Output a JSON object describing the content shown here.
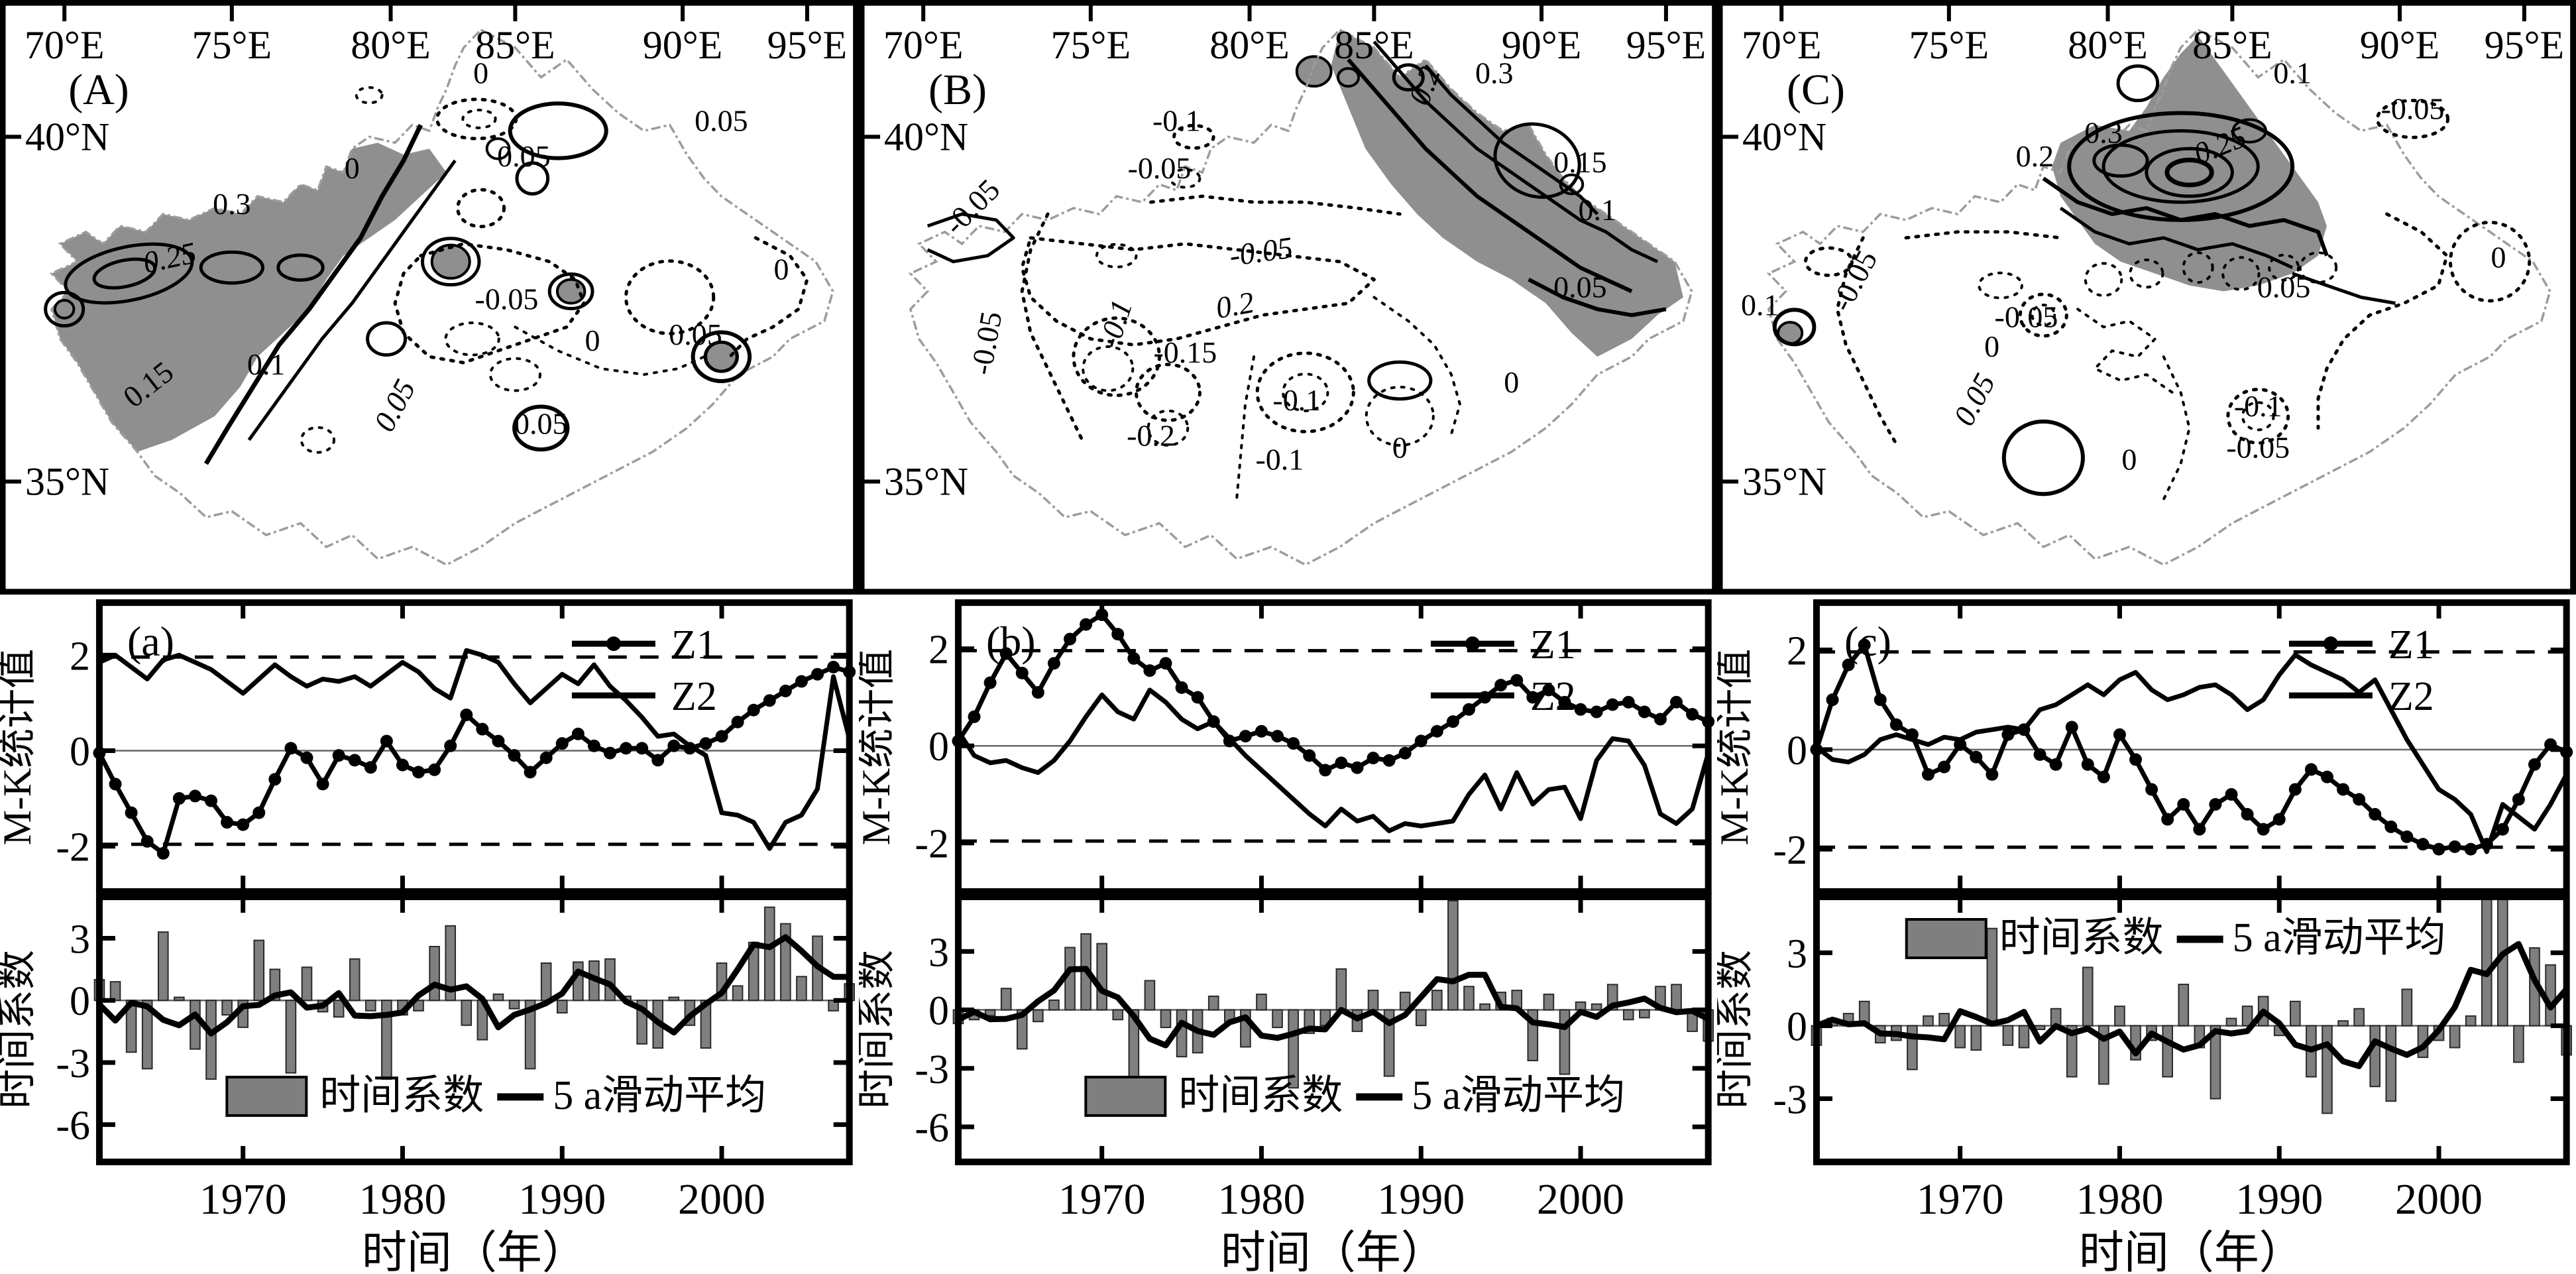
{
  "figure": {
    "background": "#ffffff",
    "ink": "#000000",
    "boundary_color": "#9c9c9c",
    "shade_color": "#8f8f8f",
    "bar_color": "#7f7f7f"
  },
  "chart_data": {
    "maps": [
      {
        "panel_label": "(A)",
        "type": "contour-map",
        "lon_ticks": [
          "70°E",
          "75°E",
          "80°E",
          "85°E",
          "90°E",
          "95°E"
        ],
        "lat_ticks": [
          "40°N",
          "35°N"
        ],
        "shaded_region": "west",
        "contour_labels": [
          {
            "v": "0.3",
            "x": 27,
            "y": 36
          },
          {
            "v": "0.25",
            "x": 20,
            "y": 45,
            "r": -12,
            "i": 1
          },
          {
            "v": "0.15",
            "x": 18,
            "y": 66,
            "r": -38
          },
          {
            "v": "0.1",
            "x": 31,
            "y": 63
          },
          {
            "v": "0.05",
            "x": 47,
            "y": 69,
            "r": -62,
            "i": 1
          },
          {
            "v": "0.05",
            "x": 63,
            "y": 73
          },
          {
            "v": "0",
            "x": 56,
            "y": 14
          },
          {
            "v": "0.05",
            "x": 61,
            "y": 28
          },
          {
            "v": "0.05",
            "x": 84,
            "y": 22
          },
          {
            "v": "-0.05",
            "x": 59,
            "y": 52
          },
          {
            "v": "0",
            "x": 69,
            "y": 59
          },
          {
            "v": "0.05",
            "x": 81,
            "y": 58
          },
          {
            "v": "0",
            "x": 91,
            "y": 47
          },
          {
            "v": "0",
            "x": 41,
            "y": 30
          }
        ]
      },
      {
        "panel_label": "(B)",
        "type": "contour-map",
        "lon_ticks": [
          "70°E",
          "75°E",
          "80°E",
          "85°E",
          "90°E",
          "95°E"
        ],
        "lat_ticks": [
          "40°N",
          "35°N"
        ],
        "shaded_region": "northeast",
        "contour_labels": [
          {
            "v": "-0.1",
            "x": 37,
            "y": 22
          },
          {
            "v": "-0.05",
            "x": 35,
            "y": 30
          },
          {
            "v": "0.3",
            "x": 74,
            "y": 14
          },
          {
            "v": "0.2",
            "x": 67,
            "y": 15,
            "r": -70,
            "i": 1
          },
          {
            "v": "0.15",
            "x": 84,
            "y": 29
          },
          {
            "v": "0.1",
            "x": 86,
            "y": 37
          },
          {
            "v": "0.05",
            "x": 84,
            "y": 50
          },
          {
            "v": "-0.05",
            "x": 14,
            "y": 36,
            "r": -45
          },
          {
            "v": "-0.05",
            "x": 47,
            "y": 44,
            "r": -8,
            "i": 1
          },
          {
            "v": "-0.05",
            "x": 16,
            "y": 58,
            "r": -80
          },
          {
            "v": "-0.1",
            "x": 31,
            "y": 55,
            "r": -72,
            "i": 1
          },
          {
            "v": "0.2",
            "x": 44,
            "y": 53,
            "r": -10,
            "i": 1
          },
          {
            "v": "-0.15",
            "x": 38,
            "y": 61
          },
          {
            "v": "-0.2",
            "x": 34,
            "y": 75
          },
          {
            "v": "-0.1",
            "x": 51,
            "y": 69
          },
          {
            "v": "-0.1",
            "x": 49,
            "y": 79
          },
          {
            "v": "0",
            "x": 63,
            "y": 77
          },
          {
            "v": "0",
            "x": 76,
            "y": 66
          }
        ]
      },
      {
        "panel_label": "(C)",
        "type": "contour-map",
        "lon_ticks": [
          "70°E",
          "75°E",
          "80°E",
          "85°E",
          "90°E",
          "95°E"
        ],
        "lat_ticks": [
          "40°N",
          "35°N"
        ],
        "shaded_region": "north-central",
        "contour_labels": [
          {
            "v": "0.1",
            "x": 67,
            "y": 14
          },
          {
            "v": "-0.05",
            "x": 81,
            "y": 20
          },
          {
            "v": "0.3",
            "x": 45,
            "y": 24
          },
          {
            "v": "0.25",
            "x": 59,
            "y": 26,
            "r": -22,
            "i": 1
          },
          {
            "v": "0.2",
            "x": 37,
            "y": 28
          },
          {
            "v": "-0.05",
            "x": 17,
            "y": 48,
            "r": -62
          },
          {
            "v": "0",
            "x": 91,
            "y": 45
          },
          {
            "v": "0.05",
            "x": 66,
            "y": 50
          },
          {
            "v": "-0.05",
            "x": 36,
            "y": 55
          },
          {
            "v": "0",
            "x": 32,
            "y": 60
          },
          {
            "v": "0.1",
            "x": 5,
            "y": 53
          },
          {
            "v": "0.05",
            "x": 31,
            "y": 68,
            "r": -62,
            "i": 1
          },
          {
            "v": "-0.1",
            "x": 63,
            "y": 70
          },
          {
            "v": "-0.05",
            "x": 63,
            "y": 77
          },
          {
            "v": "0",
            "x": 48,
            "y": 79
          }
        ]
      }
    ],
    "timeseries": [
      {
        "panel_label": "(a)",
        "years_start": 1961,
        "years_end": 2008,
        "x_ticks": [
          1970,
          1980,
          1990,
          2000
        ],
        "x_label": "时间（年）",
        "mk": {
          "type": "line",
          "y_label": "M-K统计值",
          "y_ticks": [
            2,
            0,
            -2
          ],
          "ylim": [
            -2.95,
            3.1
          ],
          "significance": 1.96,
          "legend": [
            {
              "label": "Z1"
            },
            {
              "label": "Z2"
            }
          ],
          "z1": [
            -0.05,
            -0.7,
            -1.3,
            -1.9,
            -2.15,
            -1.0,
            -0.95,
            -1.05,
            -1.5,
            -1.55,
            -1.3,
            -0.6,
            0.05,
            -0.15,
            -0.7,
            -0.1,
            -0.2,
            -0.35,
            0.2,
            -0.3,
            -0.45,
            -0.4,
            0.1,
            0.75,
            0.45,
            0.2,
            -0.1,
            -0.45,
            -0.15,
            0.15,
            0.35,
            0.1,
            -0.05,
            0.05,
            0.05,
            -0.2,
            0.1,
            0.05,
            0.15,
            0.3,
            0.6,
            0.85,
            1.05,
            1.25,
            1.45,
            1.6,
            1.75,
            1.65
          ],
          "z2": [
            1.85,
            2.0,
            1.75,
            1.5,
            1.9,
            2.0,
            1.85,
            1.7,
            1.45,
            1.2,
            1.5,
            1.8,
            1.55,
            1.35,
            1.5,
            1.45,
            1.55,
            1.35,
            1.6,
            1.85,
            1.65,
            1.3,
            1.1,
            2.1,
            2.0,
            1.85,
            1.4,
            1.0,
            1.3,
            1.6,
            1.4,
            1.8,
            1.35,
            1.05,
            0.7,
            0.3,
            0.35,
            0.1,
            -0.1,
            -1.3,
            -1.35,
            -1.5,
            -2.05,
            -1.5,
            -1.35,
            -0.8,
            1.55,
            0.25
          ]
        },
        "coeff": {
          "type": "bar",
          "y_label": "时间系数",
          "y_ticks": [
            3,
            0,
            -3,
            -6
          ],
          "ylim": [
            -7.8,
            5.0
          ],
          "legend_bar_label": "时间系数",
          "legend_line_label": "5 a滑动平均",
          "legend_position": "bottom",
          "ma_window": 5,
          "values": [
            1.0,
            0.9,
            -2.5,
            -3.3,
            3.3,
            0.15,
            -2.35,
            -3.8,
            -0.7,
            -1.3,
            2.9,
            1.5,
            -3.5,
            1.6,
            -0.55,
            -0.8,
            2.0,
            -0.5,
            -3.8,
            -0.7,
            -0.5,
            2.6,
            3.6,
            -1.2,
            -1.9,
            0.3,
            -0.4,
            -3.3,
            1.8,
            -0.6,
            1.85,
            1.9,
            2.0,
            0.2,
            -2.1,
            -2.3,
            0.15,
            -1.2,
            -2.3,
            1.8,
            0.7,
            2.8,
            4.5,
            3.7,
            1.15,
            3.1,
            -0.5,
            0.8
          ]
        }
      },
      {
        "panel_label": "(b)",
        "years_start": 1961,
        "years_end": 2008,
        "x_ticks": [
          1970,
          1980,
          1990,
          2000
        ],
        "x_label": "时间（年）",
        "mk": {
          "type": "line",
          "y_label": "M-K统计值",
          "y_ticks": [
            2,
            0,
            -2
          ],
          "ylim": [
            -3.0,
            2.95
          ],
          "significance": 1.96,
          "legend": [
            {
              "label": "Z1"
            },
            {
              "label": "Z2"
            }
          ],
          "z1": [
            0.1,
            0.6,
            1.3,
            1.9,
            1.5,
            1.1,
            1.7,
            2.2,
            2.5,
            2.7,
            2.3,
            1.8,
            1.55,
            1.7,
            1.2,
            1.0,
            0.5,
            0.1,
            0.2,
            0.3,
            0.2,
            0.05,
            -0.2,
            -0.5,
            -0.35,
            -0.45,
            -0.25,
            -0.3,
            -0.15,
            0.1,
            0.3,
            0.5,
            0.75,
            1.0,
            1.25,
            1.35,
            1.0,
            1.15,
            0.9,
            0.75,
            0.7,
            0.85,
            0.9,
            0.7,
            0.55,
            0.9,
            0.65,
            0.5
          ],
          "z2": [
            0.3,
            -0.2,
            -0.35,
            -0.3,
            -0.45,
            -0.55,
            -0.3,
            0.1,
            0.6,
            1.05,
            0.7,
            0.55,
            1.15,
            0.9,
            0.55,
            0.35,
            0.5,
            0.15,
            -0.2,
            -0.5,
            -0.8,
            -1.1,
            -1.4,
            -1.65,
            -1.3,
            -1.55,
            -1.45,
            -1.75,
            -1.6,
            -1.65,
            -1.6,
            -1.55,
            -1.0,
            -0.6,
            -1.3,
            -0.55,
            -1.2,
            -0.9,
            -0.85,
            -1.5,
            -0.3,
            0.15,
            0.1,
            -0.4,
            -1.4,
            -1.6,
            -1.3,
            -0.15
          ]
        },
        "coeff": {
          "type": "bar",
          "y_label": "时间系数",
          "y_ticks": [
            3,
            0,
            -3,
            -6
          ],
          "ylim": [
            -7.8,
            5.8
          ],
          "legend_bar_label": "时间系数",
          "legend_line_label": "5 a滑动平均",
          "legend_position": "bottom",
          "ma_window": 5,
          "values": [
            -0.7,
            -0.5,
            -0.3,
            1.1,
            -2.0,
            -0.6,
            0.5,
            3.2,
            3.9,
            3.4,
            -0.5,
            -5.1,
            1.5,
            -0.9,
            -2.4,
            -2.2,
            0.7,
            -0.6,
            -1.9,
            0.8,
            -0.9,
            -4.0,
            -1.2,
            -0.8,
            2.1,
            -1.1,
            1.0,
            -3.4,
            0.9,
            -0.8,
            1.0,
            5.6,
            1.2,
            0.3,
            0.9,
            1.0,
            -2.6,
            0.8,
            -3.3,
            0.4,
            0.3,
            1.3,
            -0.5,
            -0.4,
            1.2,
            1.3,
            -1.1,
            -1.6
          ]
        }
      },
      {
        "panel_label": "(c)",
        "years_start": 1961,
        "years_end": 2008,
        "x_ticks": [
          1970,
          1980,
          1990,
          2000
        ],
        "x_label": "时间（年）",
        "mk": {
          "type": "line",
          "y_label": "M-K统计值",
          "y_ticks": [
            2,
            0,
            -2
          ],
          "ylim": [
            -2.85,
            2.95
          ],
          "significance": 1.96,
          "legend": [
            {
              "label": "Z1"
            },
            {
              "label": "Z2"
            }
          ],
          "z1": [
            0.0,
            1.0,
            1.7,
            2.1,
            1.0,
            0.5,
            0.3,
            -0.5,
            -0.35,
            0.1,
            -0.15,
            -0.5,
            0.3,
            0.4,
            -0.1,
            -0.3,
            0.45,
            -0.3,
            -0.55,
            0.3,
            -0.2,
            -0.8,
            -1.4,
            -1.1,
            -1.6,
            -1.1,
            -0.9,
            -1.3,
            -1.6,
            -1.4,
            -0.8,
            -0.4,
            -0.55,
            -0.8,
            -1.0,
            -1.3,
            -1.55,
            -1.75,
            -1.9,
            -2.0,
            -1.95,
            -2.0,
            -1.9,
            -1.6,
            -1.0,
            -0.3,
            0.1,
            -0.05
          ],
          "z2": [
            0.05,
            -0.2,
            -0.25,
            -0.1,
            0.2,
            0.3,
            0.2,
            0.1,
            0.25,
            0.2,
            0.35,
            0.4,
            0.45,
            0.4,
            0.8,
            0.9,
            1.1,
            1.3,
            1.1,
            1.4,
            1.55,
            1.2,
            1.0,
            1.1,
            1.25,
            1.3,
            1.1,
            0.8,
            1.0,
            1.5,
            1.9,
            1.7,
            1.55,
            1.4,
            1.15,
            1.4,
            0.8,
            0.2,
            -0.3,
            -0.8,
            -1.0,
            -1.3,
            -2.05,
            -1.1,
            -1.35,
            -1.6,
            -1.1,
            -0.5
          ]
        },
        "coeff": {
          "type": "bar",
          "y_label": "时间系数",
          "y_ticks": [
            3,
            0,
            -3
          ],
          "ylim": [
            -5.6,
            5.3
          ],
          "legend_bar_label": "时间系数",
          "legend_line_label": "5 a滑动平均",
          "legend_position": "top",
          "ma_window": 5,
          "values": [
            -0.8,
            0.3,
            0.5,
            1.0,
            -0.7,
            -0.6,
            -1.8,
            0.4,
            0.5,
            -0.9,
            -1.0,
            4.0,
            -0.8,
            -0.9,
            -0.15,
            0.7,
            -2.1,
            2.4,
            -2.4,
            0.8,
            -1.4,
            -0.6,
            -2.1,
            1.7,
            -0.9,
            -3.0,
            0.3,
            0.8,
            1.2,
            -0.4,
            1.0,
            -2.1,
            -3.6,
            0.2,
            0.7,
            -2.5,
            -3.1,
            1.5,
            -1.3,
            -0.6,
            -0.9,
            0.4,
            6.2,
            6.4,
            -1.5,
            3.2,
            2.5,
            -1.2
          ]
        }
      }
    ]
  }
}
